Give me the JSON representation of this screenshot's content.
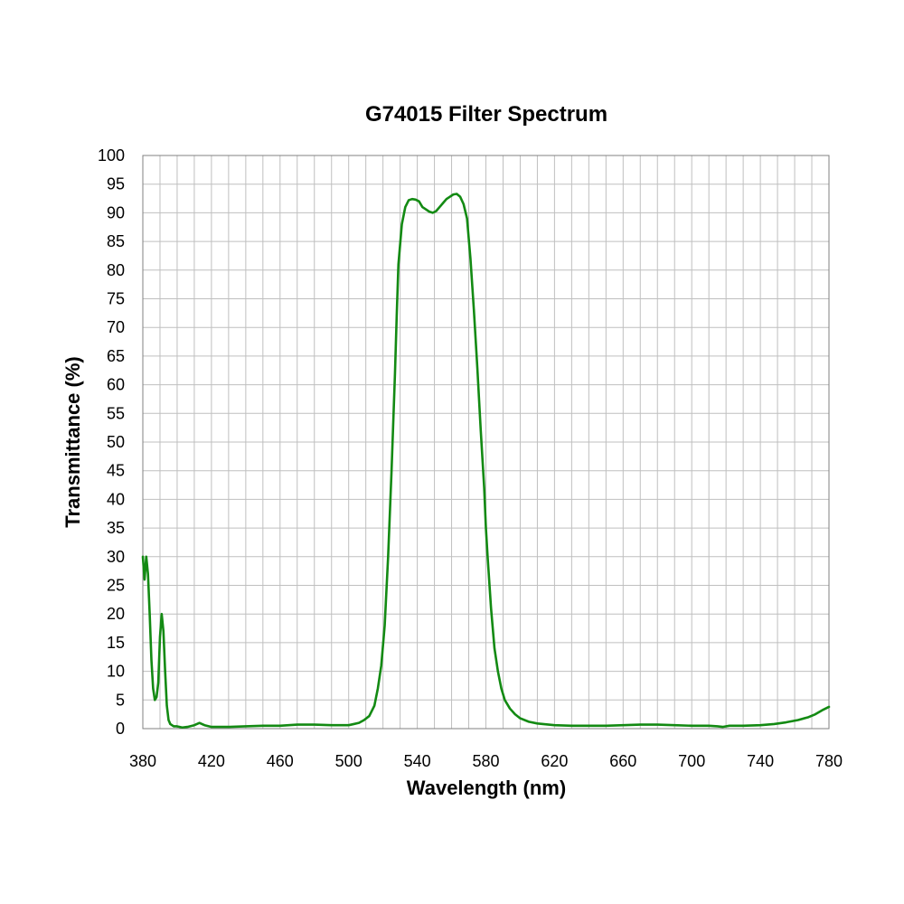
{
  "chart_data": {
    "type": "line",
    "title": "G74015 Filter Spectrum",
    "xlabel": "Wavelength (nm)",
    "ylabel": "Transmittance (%)",
    "xlim": [
      380,
      780
    ],
    "ylim": [
      0,
      100
    ],
    "x_ticks": [
      380,
      420,
      460,
      500,
      540,
      580,
      620,
      660,
      700,
      740,
      780
    ],
    "y_ticks": [
      0,
      5,
      10,
      15,
      20,
      25,
      30,
      35,
      40,
      45,
      50,
      55,
      60,
      65,
      70,
      75,
      80,
      85,
      90,
      95,
      100
    ],
    "grid": true,
    "x_minor_step": 10,
    "line_color": "#138a13",
    "grid_color": "#bfbfbf",
    "series": [
      {
        "points": [
          [
            380,
            30
          ],
          [
            381,
            26
          ],
          [
            382,
            30
          ],
          [
            383,
            27
          ],
          [
            384,
            20
          ],
          [
            385,
            12
          ],
          [
            386,
            7
          ],
          [
            387,
            5
          ],
          [
            388,
            5.5
          ],
          [
            389,
            8
          ],
          [
            390,
            16
          ],
          [
            391,
            20
          ],
          [
            392,
            17
          ],
          [
            393,
            10
          ],
          [
            394,
            4
          ],
          [
            395,
            1.5
          ],
          [
            396,
            0.8
          ],
          [
            398,
            0.4
          ],
          [
            400,
            0.4
          ],
          [
            403,
            0.2
          ],
          [
            406,
            0.3
          ],
          [
            410,
            0.6
          ],
          [
            413,
            1.0
          ],
          [
            416,
            0.6
          ],
          [
            420,
            0.3
          ],
          [
            425,
            0.3
          ],
          [
            430,
            0.3
          ],
          [
            440,
            0.4
          ],
          [
            450,
            0.5
          ],
          [
            460,
            0.5
          ],
          [
            470,
            0.7
          ],
          [
            480,
            0.7
          ],
          [
            490,
            0.6
          ],
          [
            500,
            0.6
          ],
          [
            503,
            0.8
          ],
          [
            506,
            1.0
          ],
          [
            509,
            1.5
          ],
          [
            512,
            2.2
          ],
          [
            515,
            4
          ],
          [
            517,
            7
          ],
          [
            519,
            11
          ],
          [
            521,
            18
          ],
          [
            523,
            30
          ],
          [
            525,
            45
          ],
          [
            527,
            62
          ],
          [
            528,
            72
          ],
          [
            529,
            81
          ],
          [
            531,
            88
          ],
          [
            533,
            91
          ],
          [
            535,
            92.2
          ],
          [
            537,
            92.4
          ],
          [
            539,
            92.3
          ],
          [
            541,
            92
          ],
          [
            543,
            91
          ],
          [
            545,
            90.6
          ],
          [
            547,
            90.2
          ],
          [
            549,
            90
          ],
          [
            551,
            90.3
          ],
          [
            553,
            91
          ],
          [
            555,
            91.7
          ],
          [
            557,
            92.4
          ],
          [
            559,
            92.8
          ],
          [
            561,
            93.2
          ],
          [
            563,
            93.3
          ],
          [
            565,
            92.8
          ],
          [
            567,
            91.5
          ],
          [
            569,
            89
          ],
          [
            571,
            82
          ],
          [
            573,
            73
          ],
          [
            575,
            63
          ],
          [
            577,
            52
          ],
          [
            579,
            42
          ],
          [
            580,
            35
          ],
          [
            581,
            30
          ],
          [
            583,
            21
          ],
          [
            585,
            14
          ],
          [
            587,
            10
          ],
          [
            589,
            7
          ],
          [
            591,
            5
          ],
          [
            594,
            3.5
          ],
          [
            597,
            2.5
          ],
          [
            600,
            1.8
          ],
          [
            605,
            1.2
          ],
          [
            610,
            0.9
          ],
          [
            620,
            0.6
          ],
          [
            630,
            0.5
          ],
          [
            640,
            0.5
          ],
          [
            650,
            0.5
          ],
          [
            660,
            0.6
          ],
          [
            670,
            0.7
          ],
          [
            680,
            0.7
          ],
          [
            690,
            0.6
          ],
          [
            700,
            0.5
          ],
          [
            710,
            0.5
          ],
          [
            715,
            0.4
          ],
          [
            718,
            0.3
          ],
          [
            722,
            0.5
          ],
          [
            730,
            0.5
          ],
          [
            740,
            0.6
          ],
          [
            748,
            0.8
          ],
          [
            755,
            1.1
          ],
          [
            762,
            1.5
          ],
          [
            768,
            2.0
          ],
          [
            772,
            2.5
          ],
          [
            776,
            3.2
          ],
          [
            780,
            3.8
          ]
        ]
      }
    ]
  }
}
